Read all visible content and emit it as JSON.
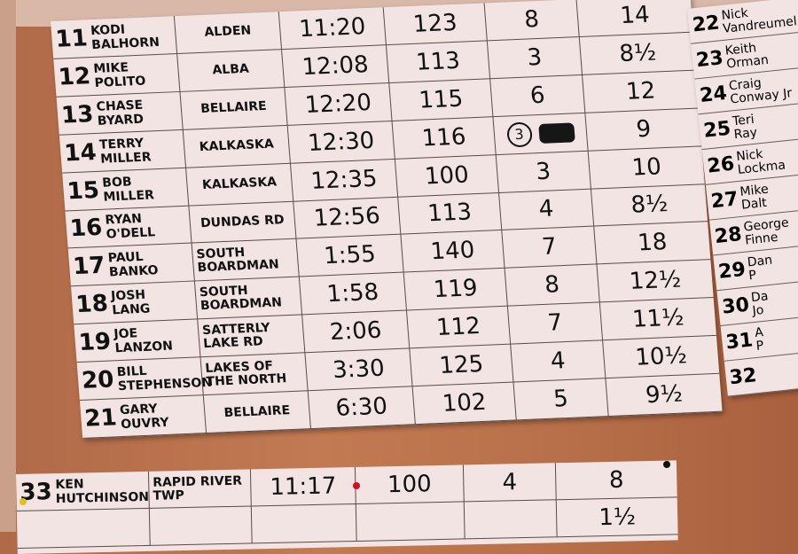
{
  "main_board": {
    "rows": [
      {
        "num": "11",
        "first": "Kodi",
        "last": "Balhorn",
        "town": "Alden",
        "time": "11:20",
        "c4": "123",
        "c5": "8",
        "c6": "14"
      },
      {
        "num": "12",
        "first": "Mike",
        "last": "Polito",
        "town": "Alba",
        "time": "12:08",
        "c4": "113",
        "c5": "3",
        "c6": "8½"
      },
      {
        "num": "13",
        "first": "Chase",
        "last": "Byard",
        "town": "Bellaire",
        "time": "12:20",
        "c4": "115",
        "c5": "6",
        "c6": "12"
      },
      {
        "num": "14",
        "first": "Terry",
        "last": "Miller",
        "town": "Kalkaska",
        "time": "12:30",
        "c4": "116",
        "c5": "3",
        "c6": "9"
      },
      {
        "num": "15",
        "first": "Bob",
        "last": "Miller",
        "town": "Kalkaska",
        "time": "12:35",
        "c4": "100",
        "c5": "3",
        "c6": "10"
      },
      {
        "num": "16",
        "first": "Ryan",
        "last": "O'Dell",
        "town": "Dundas Rd",
        "time": "12:56",
        "c4": "113",
        "c5": "4",
        "c6": "8½"
      },
      {
        "num": "17",
        "first": "Paul",
        "last": "Banko",
        "town": "South Boardman",
        "time": "1:55",
        "c4": "140",
        "c5": "7",
        "c6": "18"
      },
      {
        "num": "18",
        "first": "Josh",
        "last": "Lang",
        "town": "South Boardman",
        "time": "1:58",
        "c4": "119",
        "c5": "8",
        "c6": "12½"
      },
      {
        "num": "19",
        "first": "Joe",
        "last": "Lanzon",
        "town": "Satterly Lake Rd",
        "time": "2:06",
        "c4": "112",
        "c5": "7",
        "c6": "11½"
      },
      {
        "num": "20",
        "first": "Bill",
        "last": "Stephenson",
        "town": "Lakes of the North",
        "time": "3:30",
        "c4": "125",
        "c5": "4",
        "c6": "10½"
      },
      {
        "num": "21",
        "first": "Gary",
        "last": "Ouvry",
        "town": "Bellaire",
        "time": "6:30",
        "c4": "102",
        "c5": "5",
        "c6": "9½"
      }
    ]
  },
  "side_board": {
    "rows": [
      {
        "num": "22",
        "first": "Nick",
        "last": "Vandreumel"
      },
      {
        "num": "23",
        "first": "Keith",
        "last": "Orman"
      },
      {
        "num": "24",
        "first": "Craig",
        "last": "Conway Jr"
      },
      {
        "num": "25",
        "first": "Teri",
        "last": "Ray"
      },
      {
        "num": "26",
        "first": "Nick",
        "last": "Lockma"
      },
      {
        "num": "27",
        "first": "Mike",
        "last": "Dalt"
      },
      {
        "num": "28",
        "first": "George",
        "last": "Finne"
      },
      {
        "num": "29",
        "first": "Dan",
        "last": "P"
      },
      {
        "num": "30",
        "first": "Da",
        "last": "Jo"
      },
      {
        "num": "31",
        "first": "A",
        "last": "P"
      },
      {
        "num": "32",
        "first": "",
        "last": ""
      }
    ]
  },
  "bottom_board": {
    "row": {
      "num": "33",
      "first": "Ken",
      "last": "Hutchinson",
      "town": "Rapid River Twp",
      "time": "11:17",
      "c4": "100",
      "c5": "4",
      "c6": "8"
    },
    "next_c6": "1½"
  }
}
